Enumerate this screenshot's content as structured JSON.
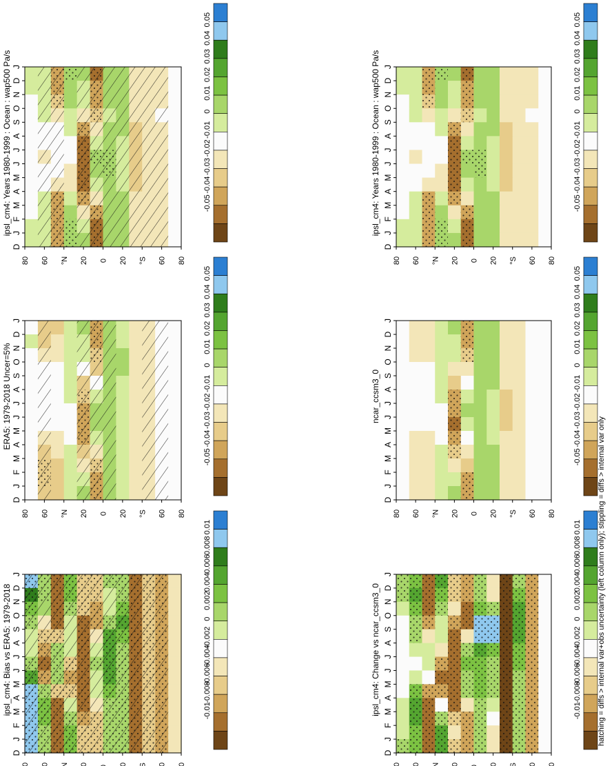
{
  "footer_note": "hatching = diffs > internal var+obs uncertainty (left column only); stippling = diffs > internal var only",
  "colors": {
    "blue_dark": "#2c7fd2",
    "blue_light": "#8fc8ee",
    "green_dark": "#2f7d1c",
    "green_mid": "#54a530",
    "green": "#7cc242",
    "green_light": "#a8d66a",
    "green_pale": "#d5ec9d",
    "white": "#fbfbfb",
    "tan_pale": "#f3e6b8",
    "tan": "#e7cc8a",
    "tan_mid": "#d0a55a",
    "brown": "#a56f2e",
    "brown_dark": "#6e4517"
  },
  "panels": [
    {
      "id": "model-col-left",
      "title": "ipsl_cm4: Years 1980-1999 : Ocean : wap500 Pa/s",
      "hatching": true,
      "colorbar": [
        "0.05",
        "0.04",
        "0.03",
        "0.02",
        "0.01",
        "0",
        "-0.01",
        "-0.02",
        "-0.03",
        "-0.04",
        "-0.05"
      ]
    },
    {
      "id": "model-col-right",
      "title": "ipsl_cm4: Years 1980-1999 : Ocean : wap500 Pa/s",
      "hatching": false,
      "colorbar": [
        "0.05",
        "0.04",
        "0.03",
        "0.02",
        "0.01",
        "0",
        "-0.01",
        "-0.02",
        "-0.03",
        "-0.04",
        "-0.05"
      ]
    },
    {
      "id": "reference",
      "title": "ERA5: 1979-2018 Uncer=5%",
      "hatching": true,
      "colorbar": [
        "0.05",
        "0.04",
        "0.03",
        "0.02",
        "0.01",
        "0",
        "-0.01",
        "-0.02",
        "-0.03",
        "-0.04",
        "-0.05"
      ]
    },
    {
      "id": "other-model",
      "title": "ncar_ccsm3_0",
      "hatching": false,
      "colorbar": [
        "0.05",
        "0.04",
        "0.03",
        "0.02",
        "0.01",
        "0",
        "-0.01",
        "-0.02",
        "-0.03",
        "-0.04",
        "-0.05"
      ]
    },
    {
      "id": "bias",
      "title": "ipsl_cm4: Bias vs ERA5: 1979-2018",
      "hatching": true,
      "colorbar": [
        "0.01",
        "0.008",
        "0.006",
        "0.004",
        "0.002",
        "0",
        "-0.002",
        "-0.004",
        "-0.006",
        "-0.008",
        "-0.01"
      ]
    },
    {
      "id": "change",
      "title": "ipsl_cm4: Change vs ncar_ccsm3_0",
      "hatching": false,
      "colorbar": [
        "0.01",
        "0.008",
        "0.006",
        "0.004",
        "0.002",
        "0",
        "-0.002",
        "-0.004",
        "-0.006",
        "-0.008",
        "-0.01"
      ]
    }
  ],
  "chart_data": {
    "type": "heatmap",
    "x_ticks": [
      "D",
      "J",
      "F",
      "M",
      "A",
      "M",
      "J",
      "J",
      "A",
      "S",
      "O",
      "N",
      "D",
      "J"
    ],
    "y_ticks": [
      "80",
      "60",
      "°N",
      "20",
      "0",
      "20",
      "°S",
      "60",
      "80"
    ],
    "ylim": [
      -90,
      90
    ],
    "grid": false,
    "latitudes": [
      80,
      65,
      50,
      35,
      20,
      8,
      -5,
      -20,
      -35,
      -50,
      -65,
      -80
    ],
    "months": [
      "J",
      "F",
      "M",
      "A",
      "M",
      "J",
      "J",
      "A",
      "S",
      "O",
      "N",
      "D"
    ],
    "fields": {
      "model": [
        [
          0.005,
          0.008,
          0.004,
          0.0,
          -0.003,
          -0.005,
          -0.005,
          -0.004,
          0.0,
          0.003,
          0.004,
          0.006
        ],
        [
          0.012,
          0.014,
          0.01,
          0.005,
          0.0,
          -0.004,
          -0.006,
          -0.004,
          0.002,
          0.008,
          0.012,
          0.013
        ],
        [
          -0.03,
          -0.032,
          -0.022,
          -0.012,
          -0.004,
          0.002,
          0.003,
          0.0,
          -0.012,
          -0.026,
          -0.033,
          -0.034
        ],
        [
          0.022,
          0.02,
          0.016,
          0.012,
          0.008,
          0.004,
          -0.005,
          -0.012,
          -0.006,
          0.008,
          0.018,
          0.022
        ],
        [
          0.015,
          0.012,
          0.006,
          -0.012,
          -0.028,
          -0.036,
          -0.042,
          -0.044,
          -0.04,
          -0.03,
          -0.008,
          0.01
        ],
        [
          -0.038,
          -0.034,
          -0.03,
          -0.022,
          -0.006,
          0.012,
          0.022,
          0.018,
          0.008,
          -0.01,
          -0.028,
          -0.036
        ],
        [
          0.02,
          0.018,
          0.016,
          0.014,
          0.018,
          0.02,
          0.022,
          0.022,
          0.02,
          0.018,
          0.018,
          0.02
        ],
        [
          0.018,
          0.018,
          0.02,
          0.02,
          0.016,
          0.014,
          0.012,
          0.012,
          0.014,
          0.016,
          0.018,
          0.018
        ],
        [
          -0.01,
          -0.012,
          -0.012,
          -0.014,
          -0.016,
          -0.018,
          -0.018,
          -0.018,
          -0.016,
          -0.014,
          -0.012,
          -0.01
        ],
        [
          -0.012,
          -0.012,
          -0.012,
          -0.012,
          -0.014,
          -0.014,
          -0.014,
          -0.014,
          -0.012,
          -0.012,
          -0.012,
          -0.012
        ],
        [
          -0.006,
          -0.006,
          -0.006,
          -0.005,
          -0.006,
          -0.006,
          -0.006,
          -0.006,
          -0.006,
          -0.006,
          -0.006,
          -0.006
        ],
        [
          -0.002,
          -0.002,
          -0.002,
          -0.002,
          -0.002,
          -0.002,
          -0.002,
          -0.002,
          -0.002,
          -0.002,
          -0.002,
          -0.002
        ]
      ],
      "reference": [
        [
          0.004,
          0.006,
          0.004,
          0.002,
          0.0,
          -0.003,
          -0.004,
          -0.003,
          0.0,
          0.002,
          0.003,
          0.004
        ],
        [
          -0.018,
          -0.016,
          -0.01,
          -0.004,
          -0.002,
          -0.002,
          -0.004,
          -0.004,
          -0.012,
          -0.018,
          -0.022,
          -0.022
        ],
        [
          -0.016,
          -0.014,
          -0.008,
          -0.004,
          -0.002,
          0.0,
          0.0,
          -0.002,
          -0.008,
          -0.014,
          -0.018,
          -0.018
        ],
        [
          0.008,
          0.01,
          0.012,
          0.012,
          0.01,
          0.006,
          0.002,
          0.0,
          0.002,
          0.006,
          0.008,
          0.008
        ],
        [
          0.018,
          0.014,
          0.008,
          -0.004,
          -0.016,
          -0.022,
          -0.028,
          -0.03,
          -0.028,
          -0.02,
          -0.006,
          0.012
        ],
        [
          -0.034,
          -0.03,
          -0.024,
          -0.016,
          -0.004,
          0.01,
          0.018,
          0.016,
          0.006,
          -0.01,
          -0.024,
          -0.032
        ],
        [
          0.016,
          0.018,
          0.018,
          0.016,
          0.016,
          0.018,
          0.018,
          0.018,
          0.016,
          0.016,
          0.016,
          0.016
        ],
        [
          0.014,
          0.014,
          0.016,
          0.016,
          0.014,
          0.012,
          0.01,
          0.01,
          0.012,
          0.014,
          0.014,
          0.014
        ],
        [
          -0.008,
          -0.008,
          -0.01,
          -0.012,
          -0.012,
          -0.014,
          -0.014,
          -0.014,
          -0.012,
          -0.01,
          -0.008,
          -0.008
        ],
        [
          -0.008,
          -0.008,
          -0.008,
          -0.008,
          -0.01,
          -0.01,
          -0.01,
          -0.01,
          -0.008,
          -0.008,
          -0.008,
          -0.008
        ],
        [
          -0.003,
          -0.003,
          -0.003,
          -0.003,
          -0.003,
          -0.003,
          -0.003,
          -0.003,
          -0.003,
          -0.003,
          -0.003,
          -0.003
        ],
        [
          -0.001,
          -0.001,
          -0.001,
          -0.001,
          -0.001,
          -0.001,
          -0.001,
          -0.001,
          -0.001,
          -0.001,
          -0.001,
          -0.001
        ]
      ],
      "other_model": [
        [
          0.002,
          0.003,
          0.002,
          0.0,
          -0.002,
          -0.002,
          -0.002,
          -0.002,
          0.0,
          0.001,
          0.002,
          0.002
        ],
        [
          -0.012,
          -0.012,
          -0.008,
          -0.004,
          -0.002,
          0.0,
          0.0,
          -0.002,
          -0.008,
          -0.012,
          -0.014,
          -0.014
        ],
        [
          -0.01,
          -0.01,
          -0.006,
          -0.004,
          -0.002,
          0.0,
          0.002,
          0.0,
          -0.006,
          -0.01,
          -0.012,
          -0.012
        ],
        [
          0.01,
          0.012,
          0.014,
          0.014,
          0.012,
          0.008,
          0.004,
          0.002,
          0.004,
          0.008,
          0.01,
          0.01
        ],
        [
          0.016,
          0.012,
          0.006,
          -0.006,
          -0.02,
          -0.028,
          -0.034,
          -0.036,
          -0.032,
          -0.022,
          -0.008,
          0.01
        ],
        [
          -0.03,
          -0.028,
          -0.022,
          -0.014,
          -0.004,
          0.008,
          0.016,
          0.014,
          0.004,
          -0.008,
          -0.02,
          -0.028
        ],
        [
          0.018,
          0.018,
          0.02,
          0.02,
          0.02,
          0.02,
          0.02,
          0.02,
          0.018,
          0.018,
          0.018,
          0.018
        ],
        [
          0.016,
          0.016,
          0.018,
          0.018,
          0.016,
          0.014,
          0.012,
          0.012,
          0.014,
          0.016,
          0.016,
          0.016
        ],
        [
          -0.01,
          -0.01,
          -0.012,
          -0.014,
          -0.014,
          -0.016,
          -0.016,
          -0.016,
          -0.014,
          -0.012,
          -0.01,
          -0.01
        ],
        [
          -0.006,
          -0.006,
          -0.006,
          -0.006,
          -0.008,
          -0.008,
          -0.008,
          -0.008,
          -0.006,
          -0.006,
          -0.006,
          -0.006
        ],
        [
          -0.004,
          -0.004,
          -0.004,
          -0.004,
          -0.004,
          -0.004,
          -0.004,
          -0.004,
          -0.004,
          -0.004,
          -0.004,
          -0.004
        ],
        [
          -0.002,
          -0.002,
          -0.002,
          -0.002,
          -0.002,
          -0.002,
          -0.002,
          -0.002,
          -0.002,
          -0.002,
          -0.002,
          -0.002
        ]
      ],
      "bias": [
        [
          0.01,
          0.009,
          0.006,
          0.004,
          0.002,
          0.002,
          0.004,
          0.008,
          0.01,
          0.01,
          0.01,
          0.01
        ],
        [
          0.004,
          0.004,
          0.003,
          -0.002,
          -0.004,
          -0.006,
          -0.008,
          -0.006,
          0.004,
          0.006,
          0.006,
          0.004
        ],
        [
          -0.008,
          -0.009,
          -0.009,
          -0.008,
          -0.004,
          0.004,
          0.004,
          0.004,
          -0.004,
          -0.008,
          -0.009,
          -0.009
        ],
        [
          0.006,
          0.006,
          0.004,
          0.002,
          0.002,
          0.002,
          -0.004,
          -0.006,
          -0.004,
          0.002,
          0.004,
          0.006
        ],
        [
          -0.004,
          -0.004,
          -0.004,
          -0.008,
          -0.009,
          -0.009,
          -0.009,
          -0.009,
          -0.009,
          -0.009,
          -0.006,
          -0.004
        ],
        [
          -0.004,
          -0.004,
          -0.006,
          -0.006,
          -0.002,
          0.002,
          0.004,
          0.002,
          0.002,
          -0.002,
          -0.004,
          -0.004
        ],
        [
          0.004,
          0.002,
          0.002,
          0.004,
          0.008,
          0.008,
          0.008,
          0.008,
          0.006,
          0.004,
          0.004,
          0.004
        ],
        [
          0.004,
          0.004,
          0.006,
          0.008,
          0.006,
          0.004,
          0.004,
          0.004,
          0.004,
          0.004,
          0.004,
          0.004
        ],
        [
          -0.008,
          -0.008,
          -0.008,
          -0.008,
          -0.008,
          -0.008,
          -0.008,
          -0.008,
          -0.008,
          -0.008,
          -0.008,
          -0.008
        ],
        [
          -0.004,
          -0.004,
          -0.004,
          -0.004,
          -0.004,
          -0.004,
          -0.004,
          -0.004,
          -0.004,
          -0.004,
          -0.004,
          -0.004
        ],
        [
          -0.006,
          -0.006,
          -0.006,
          -0.006,
          -0.006,
          -0.006,
          -0.006,
          -0.006,
          -0.006,
          -0.006,
          -0.006,
          -0.006
        ],
        [
          -0.002,
          -0.002,
          -0.002,
          -0.002,
          -0.002,
          -0.002,
          -0.002,
          -0.002,
          -0.002,
          -0.002,
          -0.002,
          -0.002
        ]
      ],
      "change": [
        [
          0.004,
          0.004,
          0.002,
          0.0,
          0.0,
          0.0,
          0.0,
          0.0,
          0.0,
          0.002,
          0.002,
          0.002
        ],
        [
          0.006,
          0.008,
          0.006,
          0.004,
          0.004,
          0.002,
          0.0,
          0.002,
          0.006,
          0.008,
          0.008,
          0.006
        ],
        [
          -0.008,
          -0.009,
          -0.008,
          -0.006,
          -0.002,
          0.002,
          0.002,
          0.0,
          -0.006,
          -0.008,
          -0.009,
          -0.009
        ],
        [
          0.008,
          0.006,
          0.004,
          0.002,
          0.002,
          -0.002,
          -0.006,
          -0.008,
          -0.006,
          0.0,
          0.004,
          0.008
        ],
        [
          -0.004,
          -0.004,
          -0.002,
          -0.006,
          -0.008,
          -0.008,
          -0.008,
          -0.008,
          -0.008,
          -0.008,
          -0.004,
          -0.002
        ],
        [
          -0.006,
          -0.006,
          -0.008,
          -0.008,
          -0.002,
          0.004,
          0.006,
          0.004,
          0.004,
          -0.002,
          -0.006,
          -0.006
        ],
        [
          0.004,
          0.004,
          0.006,
          0.01,
          0.01,
          0.008,
          0.006,
          0.006,
          0.006,
          0.004,
          0.004,
          0.004
        ],
        [
          -0.002,
          -0.002,
          0.004,
          0.01,
          0.01,
          0.006,
          0.004,
          0.004,
          0.004,
          0.002,
          0.0,
          -0.002
        ],
        [
          -0.01,
          -0.01,
          -0.01,
          -0.01,
          -0.01,
          -0.01,
          -0.01,
          -0.01,
          -0.01,
          -0.01,
          -0.01,
          -0.01
        ],
        [
          0.004,
          0.006,
          0.008,
          0.008,
          0.008,
          0.006,
          0.006,
          0.004,
          0.004,
          0.004,
          0.004,
          0.004
        ],
        [
          -0.006,
          -0.006,
          -0.006,
          -0.006,
          -0.006,
          -0.006,
          -0.006,
          -0.006,
          -0.006,
          -0.006,
          -0.006,
          -0.006
        ],
        [
          0.0,
          0.0,
          0.0,
          0.0,
          0.0,
          0.0,
          0.0,
          0.0,
          0.0,
          0.0,
          0.0,
          0.0
        ]
      ]
    },
    "panel_fields": [
      "model",
      "model",
      "reference",
      "other_model",
      "bias",
      "change"
    ],
    "panel_levels": [
      "0.05",
      "0.05",
      "0.05",
      "0.05",
      "0.01",
      "0.01"
    ]
  }
}
